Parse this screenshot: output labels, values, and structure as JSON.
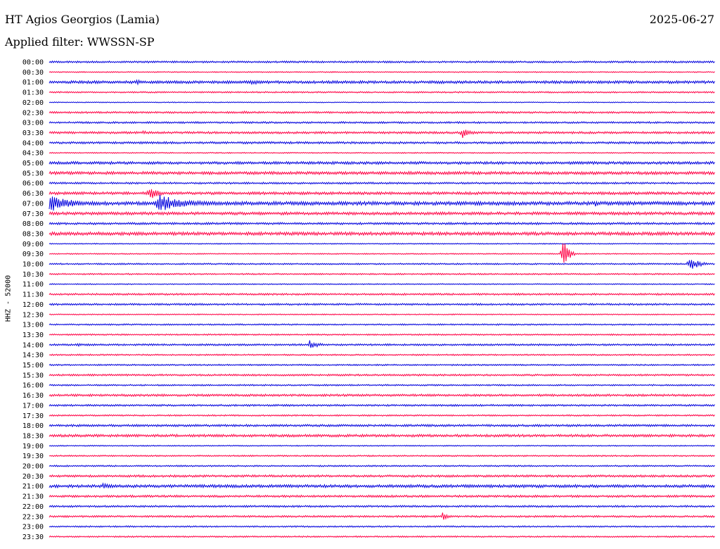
{
  "header": {
    "station": "HT Agios Georgios (Lamia)",
    "date": "2025-06-27",
    "filter": "Applied filter: WWSSN-SP"
  },
  "channel_label": "HHZ - 52000",
  "colors": {
    "blue": "#0000dd",
    "red": "#ff0044"
  },
  "chart_data": {
    "type": "line",
    "title": "HT Agios Georgios (Lamia)",
    "subtitle": "Applied filter: WWSSN-SP",
    "ylabel": "HHZ - 52000",
    "categories": [
      "00:00",
      "00:30",
      "01:00",
      "01:30",
      "02:00",
      "02:30",
      "03:00",
      "03:30",
      "04:00",
      "04:30",
      "05:00",
      "05:30",
      "06:00",
      "06:30",
      "07:00",
      "07:30",
      "08:00",
      "08:30",
      "09:00",
      "09:30",
      "10:00",
      "10:30",
      "11:00",
      "11:30",
      "12:00",
      "12:30",
      "13:00",
      "13:30",
      "14:00",
      "14:30",
      "15:00",
      "15:30",
      "16:00",
      "16:30",
      "17:00",
      "17:30",
      "18:00",
      "18:30",
      "19:00",
      "19:30",
      "20:00",
      "20:30",
      "21:00",
      "21:30",
      "22:00",
      "22:30",
      "23:00",
      "23:30"
    ],
    "trace_colors": [
      "blue",
      "red"
    ],
    "trace_noise": [
      1,
      0.6,
      1.5,
      0.8,
      0.5,
      1,
      1,
      1.2,
      1.2,
      0.6,
      1.5,
      1.6,
      1,
      1.5,
      2,
      1.6,
      1.2,
      1.8,
      0.6,
      0.6,
      0.8,
      0.8,
      0.6,
      1,
      1,
      0.6,
      0.8,
      0.8,
      1,
      0.8,
      0.8,
      1,
      0.8,
      1.2,
      1,
      0.8,
      1.2,
      1.4,
      0.6,
      0.8,
      0.8,
      1.2,
      1.6,
      1.2,
      1,
      1,
      0.8,
      0.8
    ],
    "events": [
      {
        "row": 2,
        "x": 0.13,
        "amp": 5,
        "len": 0.02
      },
      {
        "row": 2,
        "x": 0.3,
        "amp": 4,
        "len": 0.06
      },
      {
        "row": 5,
        "x": 0.29,
        "amp": 3,
        "len": 0.02
      },
      {
        "row": 7,
        "x": 0.14,
        "amp": 3,
        "len": 0.03
      },
      {
        "row": 7,
        "x": 0.62,
        "amp": 9,
        "len": 0.025
      },
      {
        "row": 11,
        "x": 0.54,
        "amp": 3,
        "len": 0.03
      },
      {
        "row": 13,
        "x": 0.15,
        "amp": 10,
        "len": 0.03
      },
      {
        "row": 14,
        "x": 0.0,
        "amp": 14,
        "len": 0.07
      },
      {
        "row": 14,
        "x": 0.16,
        "amp": 14,
        "len": 0.1
      },
      {
        "row": 14,
        "x": 0.82,
        "amp": 5,
        "len": 0.015
      },
      {
        "row": 19,
        "x": 0.77,
        "amp": 24,
        "len": 0.02
      },
      {
        "row": 20,
        "x": 0.96,
        "amp": 12,
        "len": 0.03
      },
      {
        "row": 28,
        "x": 0.39,
        "amp": 7,
        "len": 0.03
      },
      {
        "row": 28,
        "x": 0.04,
        "amp": 3,
        "len": 0.03
      },
      {
        "row": 42,
        "x": 0.08,
        "amp": 4,
        "len": 0.04
      },
      {
        "row": 45,
        "x": 0.59,
        "amp": 6,
        "len": 0.02
      }
    ]
  }
}
